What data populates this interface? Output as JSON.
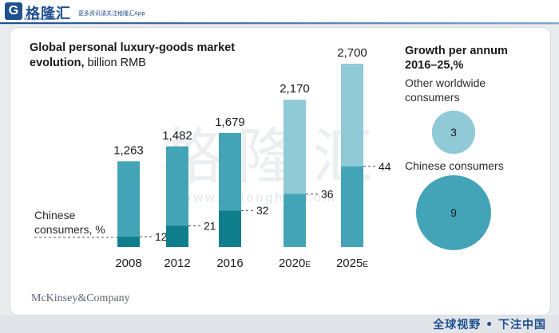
{
  "header": {
    "logo_mark": "G",
    "logo_text": "格隆汇",
    "logo_url": "www.gelonghui.com",
    "slogan": "更多资讯请关注格隆汇App"
  },
  "watermark": {
    "text": "格隆汇",
    "url": "www.gelonghui.com"
  },
  "footer": {
    "slogan": "全球视野 • 下注中国"
  },
  "brand": "McKinsey&Company",
  "colors": {
    "light_bar": "#8fcad6",
    "mid_bar": "#43a4b7",
    "dark_bar": "#0f7e8c",
    "bubble_light": "#8fcad6",
    "bubble_mid": "#43a4b7"
  },
  "chart_data": [
    {
      "type": "bar",
      "title_bold": "Global personal luxury-goods market evolution,",
      "title_rest": " billion RMB",
      "categories": [
        "2008",
        "2012",
        "2016",
        "2020",
        "2025"
      ],
      "category_suffix": [
        "",
        "",
        "",
        "E",
        "E"
      ],
      "values": [
        1263,
        1482,
        1679,
        2170,
        2700
      ],
      "total_labels": [
        "1,263",
        "1,482",
        "1,679",
        "2,170",
        "2,700"
      ],
      "chinese_share_pct": [
        12,
        21,
        32,
        36,
        44
      ],
      "chinese_share_labels": [
        "12",
        "21",
        "32",
        "36",
        "44"
      ],
      "series_label": "Chinese consumers, %",
      "series_label_lines": [
        "Chinese",
        "consumers, %"
      ],
      "ylim": [
        0,
        2700
      ]
    },
    {
      "type": "bubble",
      "title": "Growth per annum 2016–25,%",
      "title_lines": [
        "Growth per annum",
        "2016–25,%"
      ],
      "items": [
        {
          "label": "Other worldwide consumers",
          "label_lines": [
            "Other worldwide",
            "consumers"
          ],
          "value": 3
        },
        {
          "label": "Chinese consumers",
          "label_lines": [
            "Chinese consumers"
          ],
          "value": 9
        }
      ]
    }
  ]
}
